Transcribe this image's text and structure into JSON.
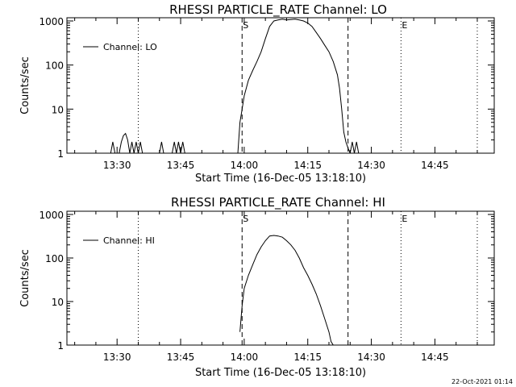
{
  "chart_data": [
    {
      "type": "line",
      "title": "RHESSI PARTICLE_RATE Channel: LO",
      "xlabel": "Start Time (16-Dec-05 13:18:10)",
      "ylabel": "Counts/sec",
      "yscale": "log",
      "ylim": [
        1,
        1000
      ],
      "y_ticks": [
        1,
        10,
        100,
        1000
      ],
      "y_tick_labels": [
        "1",
        "10",
        "100",
        "1000"
      ],
      "xlim": [
        "13:18:10",
        "14:59:00"
      ],
      "x_ticks": [
        "13:30",
        "13:45",
        "14:00",
        "14:15",
        "14:30",
        "14:45"
      ],
      "legend": {
        "entry": "Channel: LO",
        "placement": "top-left"
      },
      "markers": [
        {
          "label": "S",
          "time": "13:59:30",
          "style": "dashed"
        },
        {
          "label": "",
          "time": "14:24:30",
          "style": "dashed"
        },
        {
          "label": "E",
          "time": "14:37:00",
          "style": "dotted"
        },
        {
          "label": "",
          "time": "13:35:00",
          "style": "dotted"
        },
        {
          "label": "",
          "time": "14:55:00",
          "style": "dotted"
        }
      ],
      "grid": false,
      "series": [
        {
          "name": "Channel: LO",
          "segments": [
            [
              [
                "13:28:30",
                1
              ],
              [
                "13:29:00",
                1.8
              ],
              [
                "13:29:30",
                1
              ]
            ],
            [
              [
                "13:30:30",
                1
              ],
              [
                "13:31:00",
                1.8
              ],
              [
                "13:31:30",
                2.5
              ],
              [
                "13:32:00",
                2.8
              ],
              [
                "13:32:30",
                2
              ],
              [
                "13:33:00",
                1
              ],
              [
                "13:33:30",
                1.8
              ],
              [
                "13:34:00",
                1
              ],
              [
                "13:34:30",
                1.8
              ],
              [
                "13:35:00",
                1
              ],
              [
                "13:35:30",
                1.8
              ],
              [
                "13:36:00",
                1
              ]
            ],
            [
              [
                "13:40:00",
                1
              ],
              [
                "13:40:30",
                1.8
              ],
              [
                "13:41:00",
                1
              ]
            ],
            [
              [
                "13:43:00",
                1
              ],
              [
                "13:43:30",
                1.8
              ],
              [
                "13:44:00",
                1
              ],
              [
                "13:44:30",
                1.8
              ],
              [
                "13:45:00",
                1
              ],
              [
                "13:45:30",
                1.8
              ],
              [
                "13:46:00",
                1
              ]
            ],
            [
              [
                "13:58:30",
                1
              ],
              [
                "13:59:00",
                5
              ],
              [
                "13:59:30",
                10
              ],
              [
                "14:00:00",
                20
              ],
              [
                "14:00:30",
                30
              ],
              [
                "14:01:00",
                45
              ],
              [
                "14:02:00",
                75
              ],
              [
                "14:03:00",
                120
              ],
              [
                "14:04:00",
                200
              ],
              [
                "14:05:00",
                400
              ],
              [
                "14:06:00",
                750
              ],
              [
                "14:07:00",
                1000
              ],
              [
                "14:08:00",
                1050
              ],
              [
                "14:09:00",
                1100
              ],
              [
                "14:10:00",
                1050
              ],
              [
                "14:11:00",
                1080
              ],
              [
                "14:12:00",
                1100
              ],
              [
                "14:13:00",
                1050
              ],
              [
                "14:14:00",
                1000
              ],
              [
                "14:15:00",
                900
              ],
              [
                "14:16:00",
                750
              ],
              [
                "14:17:00",
                550
              ],
              [
                "14:18:00",
                400
              ],
              [
                "14:19:00",
                280
              ],
              [
                "14:20:00",
                200
              ],
              [
                "14:21:00",
                120
              ],
              [
                "14:22:00",
                60
              ],
              [
                "14:22:30",
                30
              ],
              [
                "14:23:00",
                10
              ],
              [
                "14:23:30",
                3
              ],
              [
                "14:24:00",
                1.8
              ],
              [
                "14:24:30",
                1.3
              ],
              [
                "14:25:00",
                1
              ]
            ],
            [
              [
                "14:25:00",
                1
              ],
              [
                "14:25:30",
                1.8
              ],
              [
                "14:26:00",
                1
              ],
              [
                "14:26:30",
                1.8
              ],
              [
                "14:27:00",
                1
              ]
            ]
          ]
        }
      ]
    },
    {
      "type": "line",
      "title": "RHESSI PARTICLE_RATE Channel: HI",
      "xlabel": "Start Time (16-Dec-05 13:18:10)",
      "ylabel": "Counts/sec",
      "yscale": "log",
      "ylim": [
        1,
        1000
      ],
      "y_ticks": [
        1,
        10,
        100,
        1000
      ],
      "y_tick_labels": [
        "1",
        "10",
        "100",
        "1000"
      ],
      "xlim": [
        "13:18:10",
        "14:59:00"
      ],
      "x_ticks": [
        "13:30",
        "13:45",
        "14:00",
        "14:15",
        "14:30",
        "14:45"
      ],
      "legend": {
        "entry": "Channel: HI",
        "placement": "top-left"
      },
      "markers": [
        {
          "label": "S",
          "time": "13:59:30",
          "style": "dashed"
        },
        {
          "label": "",
          "time": "14:24:30",
          "style": "dashed"
        },
        {
          "label": "E",
          "time": "14:37:00",
          "style": "dotted"
        },
        {
          "label": "",
          "time": "13:35:00",
          "style": "dotted"
        },
        {
          "label": "",
          "time": "14:55:00",
          "style": "dotted"
        }
      ],
      "grid": false,
      "series": [
        {
          "name": "Channel: HI",
          "segments": [
            [
              [
                "13:59:00",
                2
              ],
              [
                "13:59:30",
                8
              ],
              [
                "14:00:00",
                20
              ],
              [
                "14:01:00",
                40
              ],
              [
                "14:02:00",
                70
              ],
              [
                "14:03:00",
                120
              ],
              [
                "14:04:00",
                180
              ],
              [
                "14:05:00",
                250
              ],
              [
                "14:06:00",
                320
              ],
              [
                "14:07:00",
                330
              ],
              [
                "14:08:00",
                320
              ],
              [
                "14:09:00",
                300
              ],
              [
                "14:10:00",
                250
              ],
              [
                "14:11:00",
                200
              ],
              [
                "14:12:00",
                150
              ],
              [
                "14:13:00",
                100
              ],
              [
                "14:14:00",
                60
              ],
              [
                "14:15:00",
                40
              ],
              [
                "14:16:00",
                25
              ],
              [
                "14:17:00",
                15
              ],
              [
                "14:18:00",
                8
              ],
              [
                "14:19:00",
                4
              ],
              [
                "14:20:00",
                2
              ],
              [
                "14:20:30",
                1.2
              ],
              [
                "14:21:00",
                1
              ]
            ]
          ]
        }
      ]
    }
  ],
  "footer": {
    "timestamp": "22-Oct-2021 01:14"
  }
}
